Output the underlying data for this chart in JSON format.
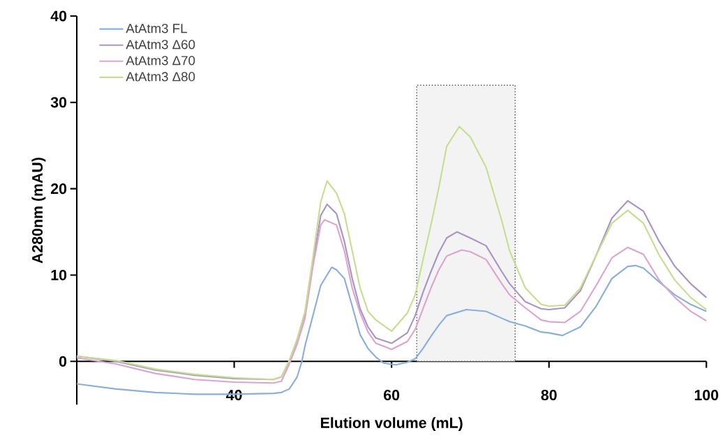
{
  "chart_data": {
    "type": "line",
    "xlabel": "Elution volume (mL)",
    "ylabel": "A280nm (mAU)",
    "xlim": [
      20,
      100
    ],
    "xticks": [
      40,
      60,
      80,
      100
    ],
    "ylim": [
      -5,
      40
    ],
    "yticks": [
      0,
      10,
      20,
      30,
      40
    ],
    "legend": "top left",
    "grid": false,
    "marker": "none",
    "line_style": "solid",
    "bands": [
      {
        "axis": "x",
        "from": 63.2,
        "to": 75.7,
        "color": "#555555"
      }
    ],
    "series": [
      {
        "name": "AtAtm3 FL",
        "color": "#8aaee0",
        "x": [
          20,
          25,
          30,
          35,
          40,
          45,
          46,
          47,
          48,
          48.6,
          49,
          50,
          51,
          52.4,
          53,
          54,
          55,
          56,
          57,
          58,
          59,
          60.5,
          62,
          63,
          64,
          65,
          66,
          67,
          69.5,
          72,
          74,
          75,
          77,
          79,
          80,
          81.7,
          84,
          86,
          88,
          90,
          91,
          92,
          94,
          96,
          98,
          100
        ],
        "values": [
          -2.6,
          -3.2,
          -3.6,
          -3.8,
          -3.8,
          -3.7,
          -3.6,
          -3.2,
          -1.8,
          0,
          1.8,
          5.3,
          8.8,
          10.9,
          10.6,
          9.6,
          6.4,
          3.1,
          1.5,
          0.5,
          -0.2,
          -0.4,
          -0.1,
          0.3,
          1.5,
          2.9,
          4.2,
          5.3,
          6.0,
          5.8,
          5.0,
          4.6,
          4.1,
          3.4,
          3.3,
          3.0,
          4.0,
          6.4,
          9.6,
          11.0,
          11.1,
          10.8,
          9.2,
          7.7,
          6.6,
          5.8
        ]
      },
      {
        "name": "AtAtm3 Δ60",
        "color": "#a993c8",
        "x": [
          20,
          25,
          30,
          35,
          40,
          45,
          46,
          47,
          48,
          49,
          50,
          51,
          51.8,
          53,
          54,
          55,
          56,
          57,
          58,
          60,
          62,
          63,
          64,
          65,
          66,
          67,
          68.3,
          70,
          72,
          74,
          75,
          77,
          79,
          80,
          82,
          84,
          86,
          88,
          90,
          92,
          94,
          96,
          98,
          100
        ],
        "values": [
          0.6,
          0.0,
          -1.0,
          -1.6,
          -2.0,
          -2.1,
          -1.8,
          0,
          2.5,
          5.6,
          11.5,
          16.9,
          18.2,
          17.1,
          13.9,
          9.6,
          6.1,
          4.0,
          2.7,
          2.1,
          3.3,
          5.3,
          8.0,
          10.4,
          12.6,
          14.3,
          15.0,
          14.3,
          13.4,
          10.4,
          9.0,
          6.9,
          6.1,
          6.0,
          6.2,
          8.2,
          12.3,
          16.6,
          18.6,
          17.4,
          13.9,
          11.0,
          9.0,
          7.4
        ]
      },
      {
        "name": "AtAtm3 Δ70",
        "color": "#dca4cf",
        "x": [
          20,
          25,
          30,
          35,
          40,
          45,
          46,
          47,
          48,
          49,
          50,
          51,
          51.5,
          53,
          54,
          55,
          56,
          57,
          58,
          60,
          62,
          63,
          64,
          65,
          66,
          67,
          68.9,
          70,
          72,
          74,
          75,
          77,
          79,
          80,
          82,
          84,
          86,
          88,
          90,
          92,
          94,
          96,
          98,
          100
        ],
        "values": [
          0.4,
          -0.3,
          -1.4,
          -2.1,
          -2.4,
          -2.5,
          -2.3,
          -0.3,
          2.0,
          5.0,
          11.0,
          15.8,
          16.4,
          15.8,
          12.8,
          8.5,
          5.6,
          3.4,
          2.1,
          1.4,
          2.3,
          3.7,
          6.1,
          8.5,
          10.6,
          12.2,
          12.9,
          12.7,
          11.8,
          9.0,
          7.7,
          6.2,
          4.8,
          4.6,
          4.5,
          5.8,
          8.8,
          12.0,
          13.2,
          12.4,
          9.4,
          7.4,
          5.8,
          4.7
        ]
      },
      {
        "name": "AtAtm3 Δ80",
        "color": "#c5df8f",
        "x": [
          20,
          25,
          30,
          35,
          40,
          45,
          46,
          47,
          48,
          49,
          50,
          51,
          51.8,
          53,
          54,
          55,
          56,
          57,
          58,
          60,
          62,
          63,
          64,
          65,
          66,
          67,
          68.6,
          70,
          72,
          74,
          75,
          77,
          79,
          80,
          82,
          84,
          86,
          88,
          90,
          92,
          94,
          96,
          98,
          100
        ],
        "values": [
          0.6,
          0.1,
          -0.9,
          -1.5,
          -1.9,
          -2.1,
          -1.8,
          0.1,
          2.6,
          5.8,
          12.0,
          18.5,
          20.9,
          19.5,
          17.1,
          12.8,
          8.5,
          5.8,
          4.8,
          3.5,
          5.6,
          7.7,
          11.8,
          15.8,
          20.1,
          24.9,
          27.2,
          26.0,
          22.5,
          16.3,
          12.8,
          8.5,
          6.6,
          6.4,
          6.5,
          8.5,
          12.3,
          16.0,
          17.5,
          16.0,
          12.3,
          9.4,
          7.4,
          6.0
        ]
      }
    ]
  }
}
